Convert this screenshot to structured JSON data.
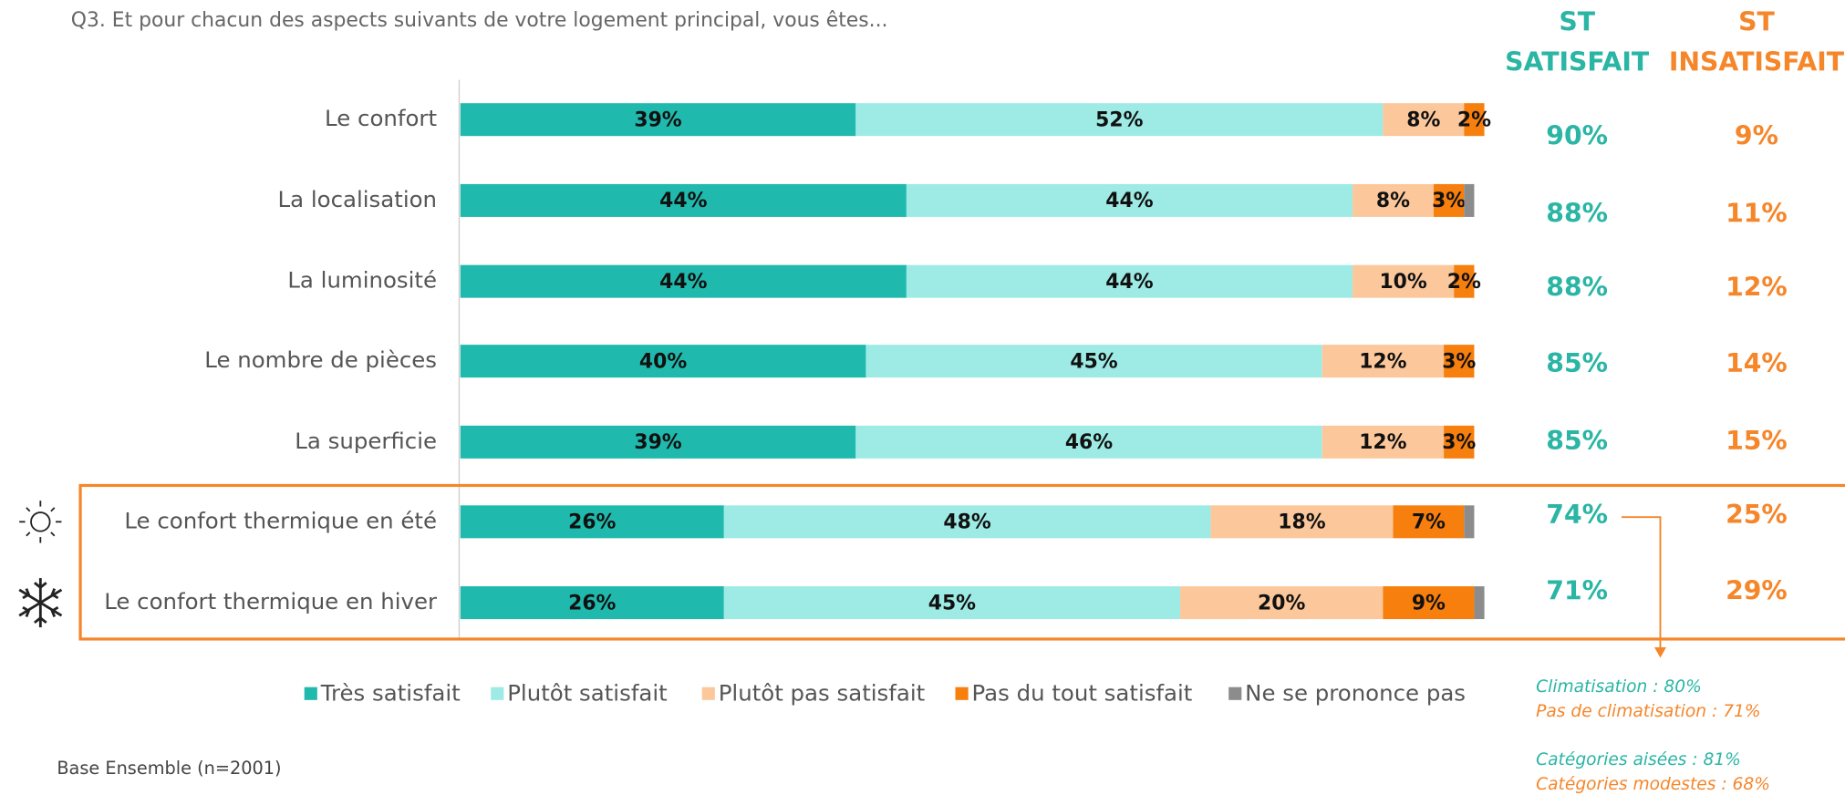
{
  "chart_data": {
    "type": "stacked-bar-horizontal",
    "title": "Q3. Et pour chacun des aspects suivants de votre logement principal, vous êtes...",
    "categories": [
      "Le confort",
      "La localisation",
      "La luminosité",
      "Le nombre de pièces",
      "La superficie",
      "Le confort thermique en été",
      "Le confort thermique en hiver"
    ],
    "xlim": [
      0,
      101
    ],
    "series": [
      {
        "name": "Très satisfait",
        "color": "#20b9ad",
        "values": [
          39,
          44,
          44,
          40,
          39,
          26,
          26
        ],
        "value_labels": [
          "39%",
          "44%",
          "44%",
          "40%",
          "39%",
          "26%",
          "26%"
        ]
      },
      {
        "name": "Plutôt satisfait",
        "color": "#9eebe5",
        "values": [
          52,
          44,
          44,
          45,
          46,
          48,
          45
        ],
        "value_labels": [
          "52%",
          "44%",
          "44%",
          "45%",
          "46%",
          "48%",
          "45%"
        ]
      },
      {
        "name": "Plutôt pas satisfait",
        "color": "#fcc89b",
        "values": [
          8,
          8,
          10,
          12,
          12,
          18,
          20
        ],
        "value_labels": [
          "8%",
          "8%",
          "10%",
          "12%",
          "12%",
          "18%",
          "20%"
        ]
      },
      {
        "name": "Pas du tout satisfait",
        "color": "#f77f0e",
        "values": [
          2,
          3,
          2,
          3,
          3,
          7,
          9
        ],
        "value_labels": [
          "2%",
          "3%",
          "2%",
          "3%",
          "3%",
          "7%",
          "9%"
        ]
      },
      {
        "name": "Ne se prononce pas",
        "color": "#8c8c8c",
        "values": [
          0,
          1,
          0,
          0,
          0,
          1,
          1
        ]
      }
    ],
    "summary_columns": [
      {
        "title_lines": [
          "ST",
          "SATISFAIT"
        ],
        "color": "#2ab5a5",
        "values": [
          90,
          88,
          88,
          85,
          85,
          74,
          71
        ],
        "value_labels": [
          "90%",
          "88%",
          "88%",
          "85%",
          "85%",
          "74%",
          "71%"
        ]
      },
      {
        "title_lines": [
          "ST",
          "INSATISFAIT"
        ],
        "color": "#f5862a",
        "values": [
          9,
          11,
          12,
          14,
          15,
          25,
          29
        ],
        "value_labels": [
          "9%",
          "11%",
          "12%",
          "14%",
          "15%",
          "25%",
          "29%"
        ]
      }
    ],
    "annotations": [
      {
        "text": "Climatisation : 80%",
        "color": "#2ab5a5"
      },
      {
        "text": "Pas de climatisation : 71%",
        "color": "#f5862a"
      },
      {
        "text": "Catégories aisées : 81%",
        "color": "#2ab5a5"
      },
      {
        "text": "Catégories modestes : 68%",
        "color": "#f5862a"
      }
    ],
    "footnote": "Base Ensemble (n=2001)"
  }
}
